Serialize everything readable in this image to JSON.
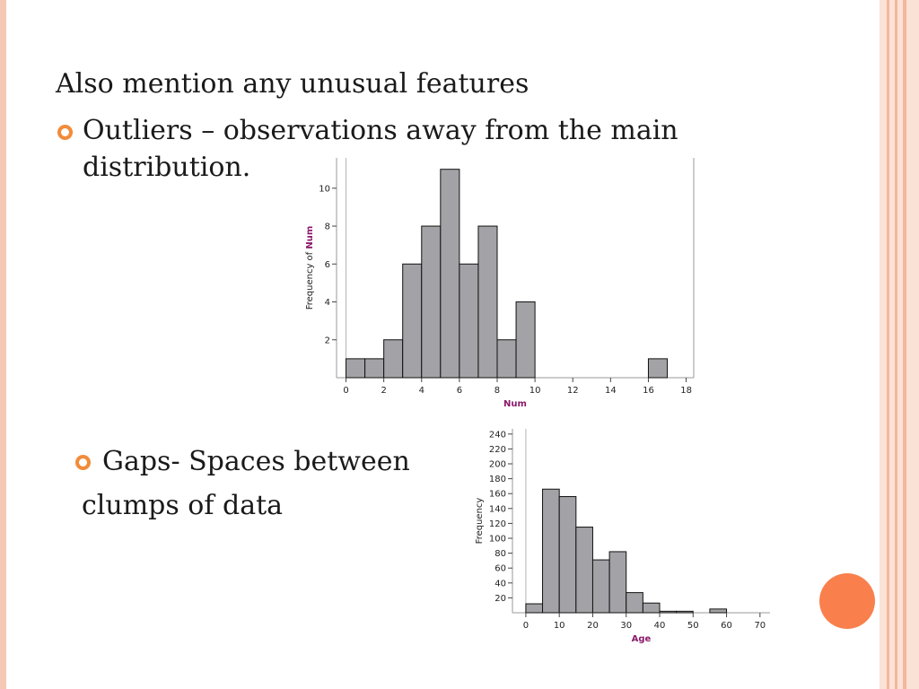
{
  "slide": {
    "heading": "Also mention any unusual features",
    "bullet1_line1": "Outliers – observations away from the main",
    "bullet1_line2": "distribution.",
    "bullet2_line1": "Gaps- Spaces between",
    "bullet2_line2": "clumps of data"
  },
  "colors": {
    "accent": "#f28c3a",
    "dot": "#f9804d",
    "bar": "#a3a3a7",
    "axis_label": "#8b1a6b"
  },
  "chart_data": [
    {
      "type": "bar",
      "xlabel": "Num",
      "ylabel_prefix": "Frequency of ",
      "ylabel_var": "Num",
      "bin_width": 1,
      "bins": [
        {
          "x": 0,
          "y": 1
        },
        {
          "x": 1,
          "y": 1
        },
        {
          "x": 2,
          "y": 2
        },
        {
          "x": 3,
          "y": 6
        },
        {
          "x": 4,
          "y": 8
        },
        {
          "x": 5,
          "y": 11
        },
        {
          "x": 6,
          "y": 6
        },
        {
          "x": 7,
          "y": 8
        },
        {
          "x": 8,
          "y": 2
        },
        {
          "x": 9,
          "y": 4
        },
        {
          "x": 16,
          "y": 1
        }
      ],
      "xlim": [
        -0.5,
        18.4
      ],
      "ylim": [
        0,
        11.6
      ],
      "xticks": [
        "0",
        "2",
        "4",
        "6",
        "8",
        "10",
        "12",
        "14",
        "16",
        "18"
      ],
      "yticks": [
        "2",
        "4",
        "6",
        "8",
        "10"
      ]
    },
    {
      "type": "bar",
      "xlabel": "Age",
      "ylabel": "Frequency",
      "bin_width": 5,
      "bins": [
        {
          "x": 0,
          "y": 12
        },
        {
          "x": 5,
          "y": 166
        },
        {
          "x": 10,
          "y": 156
        },
        {
          "x": 15,
          "y": 115
        },
        {
          "x": 20,
          "y": 71
        },
        {
          "x": 25,
          "y": 82
        },
        {
          "x": 30,
          "y": 27
        },
        {
          "x": 35,
          "y": 13
        },
        {
          "x": 40,
          "y": 2
        },
        {
          "x": 45,
          "y": 2
        },
        {
          "x": 55,
          "y": 5
        }
      ],
      "xlim": [
        -4,
        73
      ],
      "ylim": [
        0,
        247
      ],
      "xticks": [
        "0",
        "10",
        "20",
        "30",
        "40",
        "50",
        "60",
        "70"
      ],
      "yticks": [
        "20",
        "40",
        "60",
        "80",
        "100",
        "120",
        "140",
        "160",
        "180",
        "200",
        "220",
        "240"
      ]
    }
  ]
}
